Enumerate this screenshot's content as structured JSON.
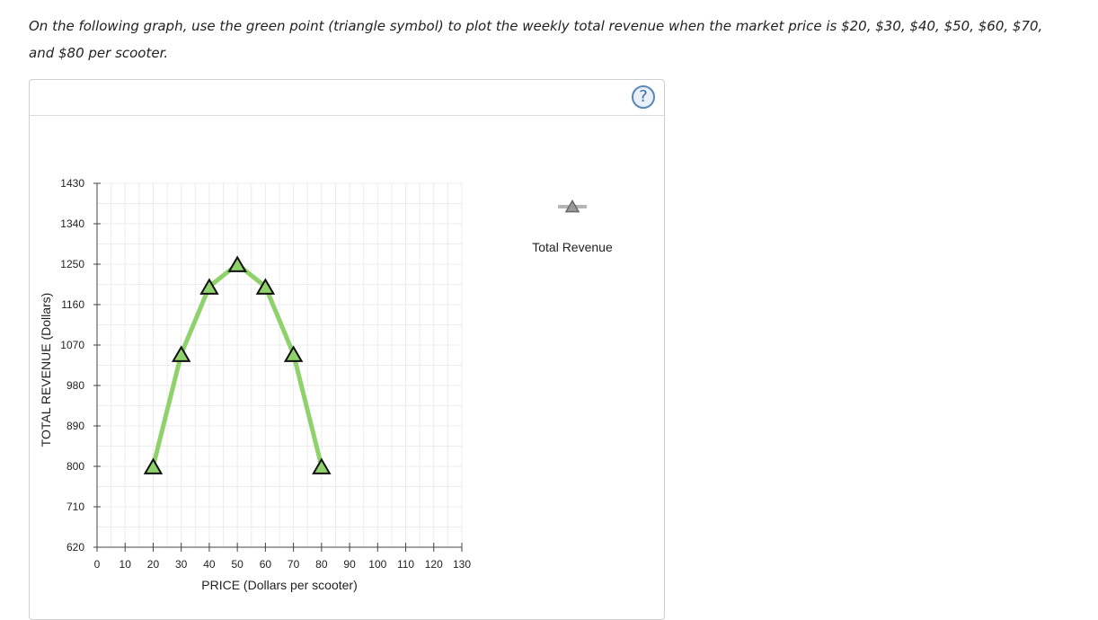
{
  "instructions": {
    "line1": "On the following graph, use the green point (triangle symbol) to plot the weekly total revenue when the market price is $20, $30, $40, $50, $60, $70,",
    "line2": "and $80 per scooter."
  },
  "help": {
    "label": "?"
  },
  "colors": {
    "series_line": "#8fd26c",
    "series_marker_fill": "#8fd26c",
    "marker_stroke": "#111111",
    "grid": "#ececec",
    "legend_line": "#b5b5b5",
    "legend_marker_fill": "#9a9a9a"
  },
  "chart_data": {
    "type": "line",
    "title": "",
    "xlabel": "PRICE (Dollars per scooter)",
    "ylabel": "TOTAL REVENUE (Dollars)",
    "xlim": [
      0,
      130
    ],
    "ylim": [
      620,
      1430
    ],
    "xticks": [
      0,
      10,
      20,
      30,
      40,
      50,
      60,
      70,
      80,
      90,
      100,
      110,
      120,
      130
    ],
    "yticks": [
      620,
      710,
      800,
      890,
      980,
      1070,
      1160,
      1250,
      1340,
      1430
    ],
    "grid": true,
    "legend_placement": "right",
    "series": [
      {
        "name": "Total Revenue",
        "marker": "triangle",
        "x": [
          20,
          30,
          40,
          50,
          60,
          70,
          80
        ],
        "y": [
          800,
          1050,
          1200,
          1250,
          1200,
          1050,
          800
        ]
      }
    ]
  }
}
